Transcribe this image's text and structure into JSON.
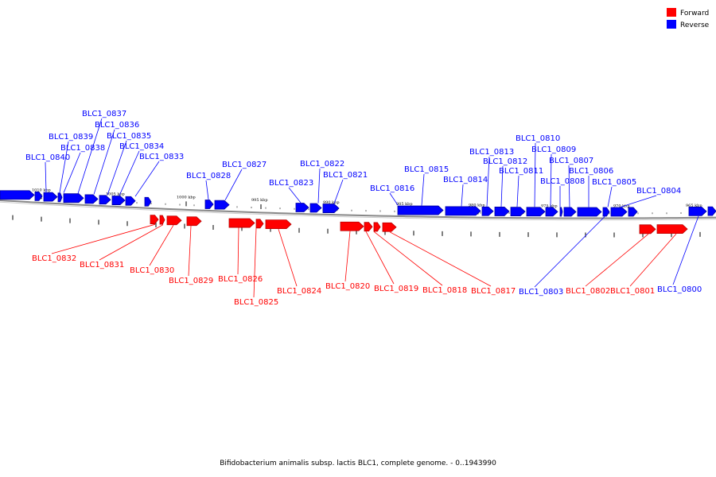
{
  "legend": [
    {
      "label": "Forward",
      "color": "#ff0000"
    },
    {
      "label": "Reverse",
      "color": "#0000ff"
    }
  ],
  "caption": "Bifidobacterium animalis subsp. lactis BLC1, complete genome. - 0..1943990",
  "colors": {
    "forward": "#ff0000",
    "reverse": "#0000ff",
    "forward_dark": "#b80000",
    "reverse_dark": "#0000a0",
    "backbone": "#888888"
  },
  "scale_ticks": [
    "1010 kbp",
    "1005 kbp",
    "1000 kbp",
    "995 kbp",
    "990 kbp",
    "985 kbp",
    "980 kbp",
    "975 kbp",
    "970 kbp",
    "965 kbp"
  ],
  "reverse_genes": [
    "BLC1_0840",
    "BLC1_0839",
    "BLC1_0838",
    "BLC1_0837",
    "BLC1_0836",
    "BLC1_0835",
    "BLC1_0834",
    "BLC1_0833",
    "BLC1_0828",
    "BLC1_0827",
    "BLC1_0823",
    "BLC1_0822",
    "BLC1_0821",
    "BLC1_0816",
    "BLC1_0815",
    "BLC1_0814",
    "BLC1_0813",
    "BLC1_0812",
    "BLC1_0811",
    "BLC1_0810",
    "BLC1_0809",
    "BLC1_0808",
    "BLC1_0807",
    "BLC1_0806",
    "BLC1_0805",
    "BLC1_0804",
    "BLC1_0803",
    "BLC1_0800"
  ],
  "forward_genes": [
    "BLC1_0832",
    "BLC1_0831",
    "BLC1_0830",
    "BLC1_0829",
    "BLC1_0826",
    "BLC1_0825",
    "BLC1_0824",
    "BLC1_0820",
    "BLC1_0819",
    "BLC1_0818",
    "BLC1_0817",
    "BLC1_0802",
    "BLC1_0801"
  ]
}
